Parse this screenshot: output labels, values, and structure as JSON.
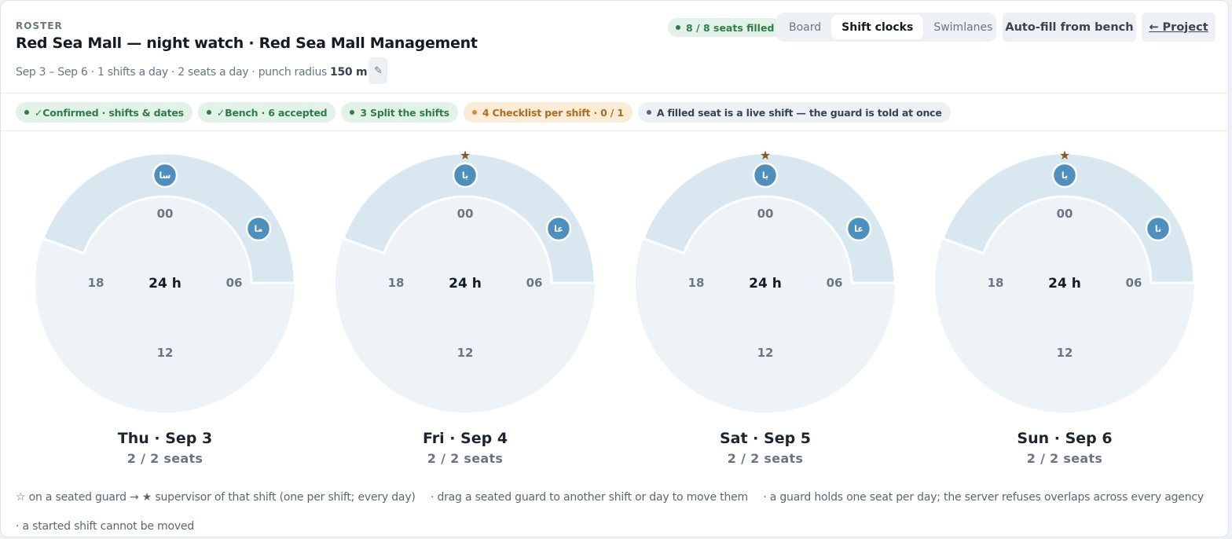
{
  "header": {
    "eyebrow": "ROSTER",
    "title": "Red Sea Mall — night watch · Red Sea Mall Management",
    "subtitle": "Sep 3 – Sep 6 · 1 shifts a day · 2 seats a day · punch radius",
    "radius": "150 m",
    "edit_icon": "pencil-icon",
    "filled": "8 / 8 seats filled"
  },
  "views": [
    {
      "label": "Board",
      "active": false
    },
    {
      "label": "Shift clocks",
      "active": true
    },
    {
      "label": "Swimlanes",
      "active": false
    }
  ],
  "actions": {
    "autofill": "Auto-fill from bench",
    "project": "← Project"
  },
  "steps": [
    {
      "label": "✓Confirmed · shifts & dates",
      "status": "green"
    },
    {
      "label": "✓Bench · 6 accepted",
      "status": "green"
    },
    {
      "label": "3 Split the shifts",
      "status": "green"
    },
    {
      "label": "4 Checklist per shift · 0 / 1",
      "status": "orange"
    },
    {
      "label": "A filled seat is a live shift — the guard is told at once",
      "status": "gray"
    }
  ],
  "clocks": [
    {
      "day": "Thu · Sep 3",
      "seats": "2 / 2 seats",
      "center": "24 h",
      "hours": [
        "00",
        "06",
        "12",
        "18"
      ],
      "guards": [
        "سا",
        "ما"
      ],
      "supervisor": false
    },
    {
      "day": "Fri · Sep 4",
      "seats": "2 / 2 seats",
      "center": "24 h",
      "hours": [
        "00",
        "06",
        "12",
        "18"
      ],
      "guards": [
        "يا",
        "عا"
      ],
      "supervisor": true
    },
    {
      "day": "Sat · Sep 5",
      "seats": "2 / 2 seats",
      "center": "24 h",
      "hours": [
        "00",
        "06",
        "12",
        "18"
      ],
      "guards": [
        "يا",
        "عا"
      ],
      "supervisor": true
    },
    {
      "day": "Sun · Sep 6",
      "seats": "2 / 2 seats",
      "center": "24 h",
      "hours": [
        "00",
        "06",
        "12",
        "18"
      ],
      "guards": [
        "يا",
        "نا"
      ],
      "supervisor": true
    }
  ],
  "footer": [
    "☆ on a seated guard → ★ supervisor of that shift (one per shift; every day)",
    "· drag a seated guard to another shift or day to move them",
    "· a guard holds one seat per day; the server refuses overlaps across every agency",
    "· a started shift cannot be moved"
  ],
  "colors": {
    "clock_bg": "#eef3f7",
    "shift_band": "#d9e7f0",
    "guard": "#4f8fbd",
    "star": "#8a5a24"
  }
}
